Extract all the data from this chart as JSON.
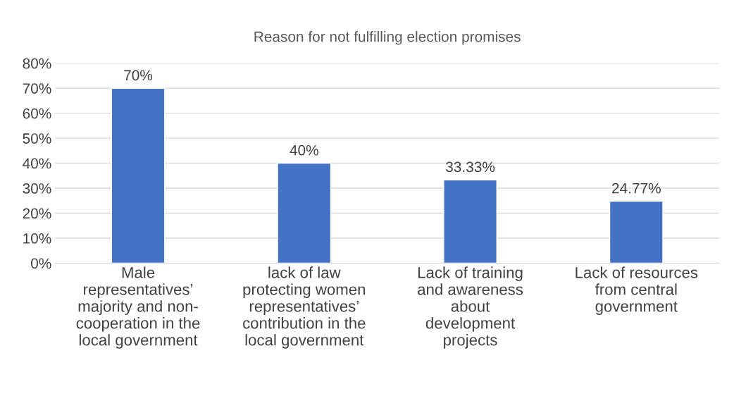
{
  "chart_data": {
    "type": "bar",
    "title": "Reason for not fulfilling election promises",
    "categories": [
      "Male\nrepresentatives’\nmajority and non-\ncooperation in the\nlocal government",
      "lack of law\nprotecting women\nrepresentatives’\ncontribution in the\nlocal government",
      "Lack of training\nand awareness\nabout\ndevelopment\nprojects",
      "Lack of resources\nfrom central\ngovernment"
    ],
    "values": [
      70,
      40,
      33.33,
      24.77
    ],
    "value_labels": [
      "70%",
      "40%",
      "33.33%",
      "24.77%"
    ],
    "color": "#4472c4",
    "ylim": [
      0,
      80
    ],
    "yticks": [
      {
        "value": 0,
        "label": "0%"
      },
      {
        "value": 10,
        "label": "10%"
      },
      {
        "value": 20,
        "label": "20%"
      },
      {
        "value": 30,
        "label": "30%"
      },
      {
        "value": 40,
        "label": "40%"
      },
      {
        "value": 50,
        "label": "50%"
      },
      {
        "value": 60,
        "label": "60%"
      },
      {
        "value": 70,
        "label": "70%"
      },
      {
        "value": 80,
        "label": "80%"
      }
    ],
    "grid": "y",
    "legend": false
  }
}
